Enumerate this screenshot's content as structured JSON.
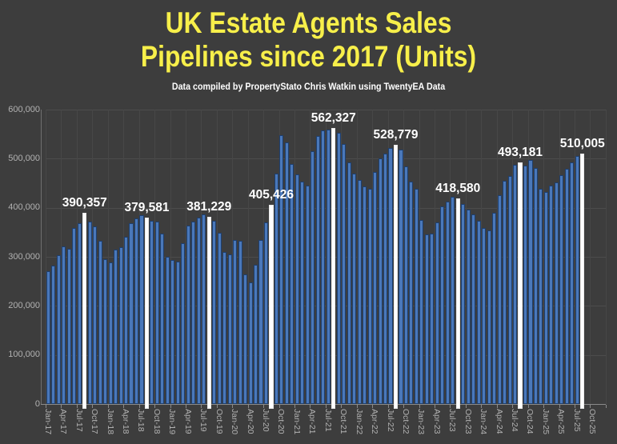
{
  "title": {
    "line1": "UK Estate Agents Sales",
    "line2": "Pipelines since 2017 (Units)"
  },
  "subtitle": "Data compiled by PropertyStato Chris Watkin using TwentyEA Data",
  "colors": {
    "background": "#3d3d3d",
    "title_yellow": "#f7ef4a",
    "bar_blue": "#4a78ba",
    "bar_blue_border": "#1e3f6e",
    "bar_highlight": "#ffffff",
    "gridline": "#4c4c4c",
    "axis_text": "#b2b2b2",
    "data_label": "#ffffff"
  },
  "chart_data": {
    "type": "bar",
    "title": "UK Estate Agents Sales Pipelines since 2017 (Units)",
    "subtitle": "Data compiled by PropertyStato Chris Watkin using TwentyEA Data",
    "xlabel": "",
    "ylabel": "",
    "ylim": [
      0,
      600000
    ],
    "grid": true,
    "legend": false,
    "y_tick_labels": [
      "0",
      "100,000",
      "200,000",
      "300,000",
      "400,000",
      "500,000",
      "600,000"
    ],
    "x_tick_labels": [
      "Jan-17",
      "Apr-17",
      "Jul-17",
      "Oct-17",
      "Jan-18",
      "Apr-18",
      "Jul-18",
      "Oct-18",
      "Jan-19",
      "Apr-19",
      "Jul-19",
      "Oct-19",
      "Jan-20",
      "Apr-20",
      "Jul-20",
      "Oct-20",
      "Jan-21",
      "Apr-21",
      "Jul-21",
      "Oct-21",
      "Jan-22",
      "Apr-22",
      "Jul-22",
      "Oct-22",
      "Jan-23",
      "Apr-23",
      "Jul-23",
      "Oct-23",
      "Jan-24",
      "Apr-24",
      "Jul-24",
      "Oct-24",
      "Jan-25",
      "Apr-25",
      "Jul-25",
      "Oct-25"
    ],
    "axis_extends_to": "Oct-25",
    "categories": [
      "Jan-17",
      "Feb-17",
      "Mar-17",
      "Apr-17",
      "May-17",
      "Jun-17",
      "Jul-17",
      "Aug-17",
      "Sep-17",
      "Oct-17",
      "Nov-17",
      "Dec-17",
      "Jan-18",
      "Feb-18",
      "Mar-18",
      "Apr-18",
      "May-18",
      "Jun-18",
      "Jul-18",
      "Aug-18",
      "Sep-18",
      "Oct-18",
      "Nov-18",
      "Dec-18",
      "Jan-19",
      "Feb-19",
      "Mar-19",
      "Apr-19",
      "May-19",
      "Jun-19",
      "Jul-19",
      "Aug-19",
      "Sep-19",
      "Oct-19",
      "Nov-19",
      "Dec-19",
      "Jan-20",
      "Feb-20",
      "Mar-20",
      "Apr-20",
      "May-20",
      "Jun-20",
      "Jul-20",
      "Aug-20",
      "Sep-20",
      "Oct-20",
      "Nov-20",
      "Dec-20",
      "Jan-21",
      "Feb-21",
      "Mar-21",
      "Apr-21",
      "May-21",
      "Jun-21",
      "Jul-21",
      "Aug-21",
      "Sep-21",
      "Oct-21",
      "Nov-21",
      "Dec-21",
      "Jan-22",
      "Feb-22",
      "Mar-22",
      "Apr-22",
      "May-22",
      "Jun-22",
      "Jul-22",
      "Aug-22",
      "Sep-22",
      "Oct-22",
      "Nov-22",
      "Dec-22",
      "Jan-23",
      "Feb-23",
      "Mar-23",
      "Apr-23",
      "May-23",
      "Jun-23",
      "Jul-23",
      "Aug-23",
      "Sep-23",
      "Oct-23",
      "Nov-23",
      "Dec-23",
      "Jan-24",
      "Feb-24",
      "Mar-24",
      "Apr-24",
      "May-24",
      "Jun-24",
      "Jul-24",
      "Aug-24",
      "Sep-24",
      "Oct-24",
      "Nov-24",
      "Dec-24",
      "Jan-25",
      "Feb-25",
      "Mar-25",
      "Apr-25",
      "May-25",
      "Jun-25",
      "Jul-25",
      "Aug-25"
    ],
    "values": [
      271000,
      282000,
      304000,
      322000,
      316000,
      358000,
      368000,
      390357,
      372000,
      362000,
      333000,
      295000,
      288000,
      314000,
      320000,
      340000,
      368000,
      378000,
      384000,
      379581,
      374000,
      371000,
      348000,
      300000,
      293000,
      290000,
      328000,
      364000,
      372000,
      380000,
      387000,
      381229,
      373000,
      349000,
      310000,
      305000,
      335000,
      332000,
      264000,
      248000,
      283000,
      335000,
      370000,
      405426,
      470000,
      548000,
      533000,
      489000,
      468000,
      453000,
      445000,
      515000,
      546000,
      558000,
      560000,
      562327,
      552000,
      530000,
      492000,
      470000,
      457000,
      443000,
      438000,
      473000,
      500000,
      511000,
      522000,
      528779,
      519000,
      484000,
      454000,
      438000,
      375000,
      346000,
      348000,
      370000,
      403000,
      413000,
      423000,
      418580,
      408000,
      397000,
      386000,
      373000,
      359000,
      354000,
      390000,
      425000,
      455000,
      465000,
      487000,
      493181,
      486000,
      497000,
      481000,
      438000,
      432000,
      445000,
      452000,
      466000,
      480000,
      493000,
      506000,
      510005
    ],
    "highlights": [
      {
        "index": 7,
        "month": "Aug-17",
        "label": "390,357"
      },
      {
        "index": 19,
        "month": "Aug-18",
        "label": "379,581"
      },
      {
        "index": 31,
        "month": "Aug-19",
        "label": "381,229"
      },
      {
        "index": 43,
        "month": "Aug-20",
        "label": "405,426"
      },
      {
        "index": 55,
        "month": "Aug-21",
        "label": "562,327"
      },
      {
        "index": 67,
        "month": "Aug-22",
        "label": "528,779"
      },
      {
        "index": 79,
        "month": "Aug-23",
        "label": "418,580"
      },
      {
        "index": 91,
        "month": "Aug-24",
        "label": "493,181"
      },
      {
        "index": 103,
        "month": "Aug-25",
        "label": "510,005"
      }
    ]
  }
}
